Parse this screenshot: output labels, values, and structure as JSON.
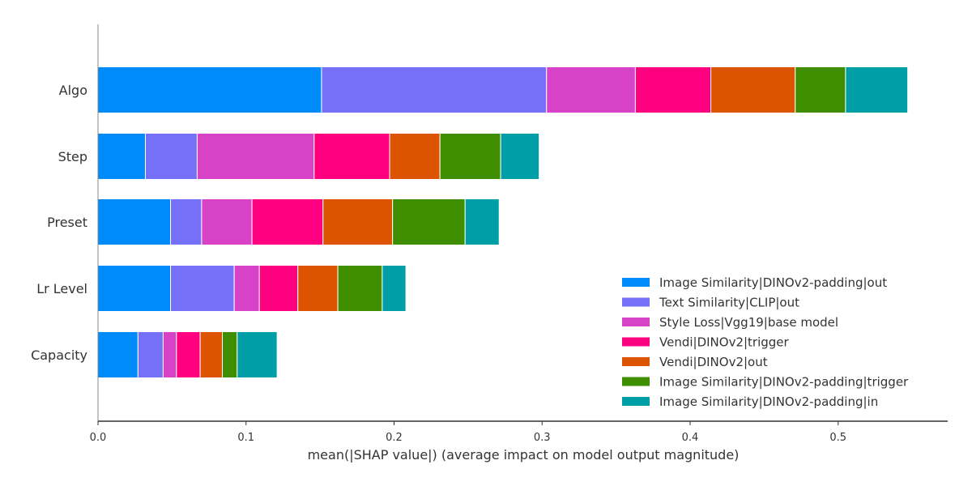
{
  "chart_data": {
    "type": "bar",
    "orientation": "horizontal",
    "stacked": true,
    "categories": [
      "Algo",
      "Step",
      "Preset",
      "Lr Level",
      "Capacity"
    ],
    "series": [
      {
        "name": "Image Similarity|DINOv2-padding|out",
        "color": "#008bfb",
        "values": [
          0.151,
          0.032,
          0.049,
          0.049,
          0.027
        ]
      },
      {
        "name": "Text Similarity|CLIP|out",
        "color": "#7570f7",
        "values": [
          0.152,
          0.035,
          0.021,
          0.043,
          0.017
        ]
      },
      {
        "name": "Style Loss|Vgg19|base model",
        "color": "#d742c7",
        "values": [
          0.06,
          0.079,
          0.034,
          0.017,
          0.009
        ]
      },
      {
        "name": "Vendi|DINOv2|trigger",
        "color": "#ff0080",
        "values": [
          0.051,
          0.051,
          0.048,
          0.026,
          0.016
        ]
      },
      {
        "name": "Vendi|DINOv2|out",
        "color": "#dc5400",
        "values": [
          0.057,
          0.034,
          0.047,
          0.027,
          0.015
        ]
      },
      {
        "name": "Image Similarity|DINOv2-padding|trigger",
        "color": "#3f8e00",
        "values": [
          0.034,
          0.041,
          0.049,
          0.03,
          0.01
        ]
      },
      {
        "name": "Image Similarity|DINOv2-padding|in",
        "color": "#009fa8",
        "values": [
          0.042,
          0.026,
          0.023,
          0.016,
          0.027
        ]
      }
    ],
    "xlabel": "mean(|SHAP value|) (average impact on model output magnitude)",
    "ylabel": "",
    "xlim": [
      0,
      0.574
    ],
    "xticks": [
      0.0,
      0.1,
      0.2,
      0.3,
      0.4,
      0.5
    ],
    "xtick_labels": [
      "0.0",
      "0.1",
      "0.2",
      "0.3",
      "0.4",
      "0.5"
    ],
    "grid": false,
    "legend_position": "bottom-right"
  }
}
